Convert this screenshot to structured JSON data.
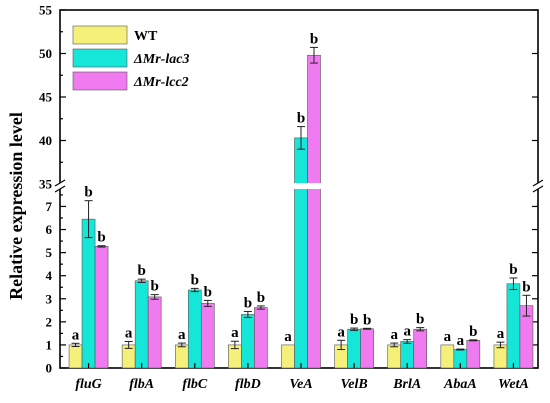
{
  "chart_data": {
    "type": "bar",
    "ylabel": "Relative expression level",
    "categories": [
      "fluG",
      "flbA",
      "flbC",
      "flbD",
      "VeA",
      "VelB",
      "BrlA",
      "AbaA",
      "WetA"
    ],
    "axis_break": {
      "lower_range": [
        0,
        7.8
      ],
      "upper_range": [
        35,
        55
      ]
    },
    "y_ticks_lower": [
      "0",
      "1",
      "2",
      "3",
      "4",
      "5",
      "6",
      "7"
    ],
    "y_ticks_upper": [
      "35",
      "40",
      "45",
      "50",
      "55"
    ],
    "legend_position": "top-left",
    "series": [
      {
        "name": "WT",
        "color": "#f4f07a",
        "values": [
          1.0,
          1.0,
          1.0,
          1.0,
          1.0,
          1.0,
          1.0,
          1.0,
          1.0
        ],
        "errors": [
          0.07,
          0.15,
          0.08,
          0.16,
          0.0,
          0.2,
          0.08,
          0.0,
          0.12
        ],
        "labels": [
          "a",
          "a",
          "a",
          "a",
          "a",
          "a",
          "a",
          "a",
          "a"
        ]
      },
      {
        "name": "ΔMr-lac3",
        "color": "#14e6d8",
        "values": [
          6.45,
          3.78,
          3.38,
          2.32,
          40.3,
          1.68,
          1.15,
          0.8,
          3.65
        ],
        "errors": [
          0.8,
          0.07,
          0.07,
          0.13,
          1.3,
          0.05,
          0.08,
          0.02,
          0.25
        ],
        "labels": [
          "b",
          "b",
          "b",
          "b",
          "b",
          "b",
          "a",
          "a",
          "b"
        ]
      },
      {
        "name": "ΔMr-lcc2",
        "color": "#f07af0",
        "values": [
          5.27,
          3.08,
          2.8,
          2.62,
          49.8,
          1.7,
          1.68,
          1.2,
          2.7
        ],
        "errors": [
          0.03,
          0.1,
          0.13,
          0.07,
          0.9,
          0.02,
          0.07,
          0.02,
          0.45
        ],
        "labels": [
          "b",
          "b",
          "b",
          "b",
          "b",
          "b",
          "b",
          "b",
          "b"
        ]
      }
    ]
  }
}
